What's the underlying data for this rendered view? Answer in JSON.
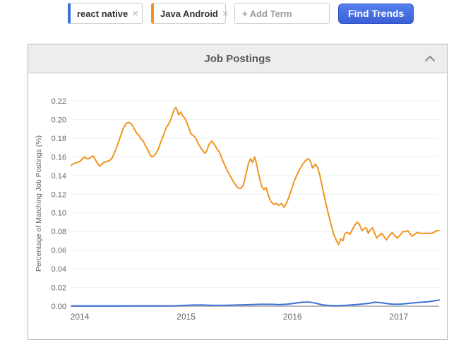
{
  "toolbar": {
    "terms": [
      {
        "label": "react native",
        "color": "#3b6fd9"
      },
      {
        "label": "Java Android",
        "color": "#f0941d"
      }
    ],
    "remove_icon": "×",
    "add_term_placeholder": "+ Add Term",
    "find_trends_label": "Find Trends"
  },
  "panel": {
    "title": "Job Postings"
  },
  "chart_data": {
    "type": "line",
    "title": "Job Postings",
    "xlabel": "",
    "ylabel": "Percentage of Matching Job Postings (%)",
    "ylim": [
      0,
      0.22
    ],
    "ytick_step": 0.02,
    "xlim": [
      2013.92,
      2017.38
    ],
    "xticks": [
      2014,
      2015,
      2016,
      2017
    ],
    "grid": true,
    "legend_position": "none",
    "grid_color": "#f0f0f0",
    "baseline_color": "#bbbbbb",
    "tick_color": "#666666",
    "series": [
      {
        "name": "react native",
        "color": "#3b6fd9",
        "points": [
          [
            2013.92,
            0.0002
          ],
          [
            2014.1,
            0.0002
          ],
          [
            2014.3,
            0.0002
          ],
          [
            2014.5,
            0.0003
          ],
          [
            2014.7,
            0.0003
          ],
          [
            2014.9,
            0.0004
          ],
          [
            2015.0,
            0.0008
          ],
          [
            2015.08,
            0.0012
          ],
          [
            2015.16,
            0.0012
          ],
          [
            2015.24,
            0.0008
          ],
          [
            2015.32,
            0.0008
          ],
          [
            2015.4,
            0.001
          ],
          [
            2015.5,
            0.0013
          ],
          [
            2015.6,
            0.0016
          ],
          [
            2015.7,
            0.002
          ],
          [
            2015.8,
            0.002
          ],
          [
            2015.88,
            0.0016
          ],
          [
            2015.96,
            0.0022
          ],
          [
            2016.04,
            0.0034
          ],
          [
            2016.1,
            0.0042
          ],
          [
            2016.16,
            0.0044
          ],
          [
            2016.22,
            0.0032
          ],
          [
            2016.28,
            0.0014
          ],
          [
            2016.35,
            0.0006
          ],
          [
            2016.42,
            0.0004
          ],
          [
            2016.5,
            0.0008
          ],
          [
            2016.58,
            0.0015
          ],
          [
            2016.65,
            0.0022
          ],
          [
            2016.72,
            0.003
          ],
          [
            2016.78,
            0.0042
          ],
          [
            2016.84,
            0.0036
          ],
          [
            2016.9,
            0.0026
          ],
          [
            2016.96,
            0.002
          ],
          [
            2017.02,
            0.0022
          ],
          [
            2017.08,
            0.0028
          ],
          [
            2017.15,
            0.0036
          ],
          [
            2017.22,
            0.0042
          ],
          [
            2017.28,
            0.0048
          ],
          [
            2017.33,
            0.0056
          ],
          [
            2017.38,
            0.0066
          ]
        ]
      },
      {
        "name": "Java Android",
        "color": "#f0941d",
        "points": [
          [
            2013.92,
            0.151
          ],
          [
            2013.947,
            0.153
          ],
          [
            2013.973,
            0.154
          ],
          [
            2014.0,
            0.155
          ],
          [
            2014.027,
            0.158
          ],
          [
            2014.046,
            0.16
          ],
          [
            2014.066,
            0.158
          ],
          [
            2014.086,
            0.158
          ],
          [
            2014.106,
            0.16
          ],
          [
            2014.126,
            0.161
          ],
          [
            2014.146,
            0.157
          ],
          [
            2014.166,
            0.153
          ],
          [
            2014.186,
            0.15
          ],
          [
            2014.206,
            0.152
          ],
          [
            2014.226,
            0.154
          ],
          [
            2014.252,
            0.155
          ],
          [
            2014.279,
            0.156
          ],
          [
            2014.305,
            0.159
          ],
          [
            2014.332,
            0.166
          ],
          [
            2014.358,
            0.174
          ],
          [
            2014.385,
            0.183
          ],
          [
            2014.411,
            0.191
          ],
          [
            2014.438,
            0.196
          ],
          [
            2014.458,
            0.197
          ],
          [
            2014.478,
            0.196
          ],
          [
            2014.498,
            0.193
          ],
          [
            2014.537,
            0.185
          ],
          [
            2014.557,
            0.183
          ],
          [
            2014.577,
            0.179
          ],
          [
            2014.597,
            0.177
          ],
          [
            2014.617,
            0.172
          ],
          [
            2014.637,
            0.168
          ],
          [
            2014.657,
            0.163
          ],
          [
            2014.677,
            0.16
          ],
          [
            2014.697,
            0.161
          ],
          [
            2014.717,
            0.164
          ],
          [
            2014.737,
            0.168
          ],
          [
            2014.756,
            0.174
          ],
          [
            2014.776,
            0.18
          ],
          [
            2014.796,
            0.186
          ],
          [
            2014.816,
            0.192
          ],
          [
            2014.836,
            0.195
          ],
          [
            2014.856,
            0.2
          ],
          [
            2014.876,
            0.207
          ],
          [
            2014.889,
            0.211
          ],
          [
            2014.902,
            0.213
          ],
          [
            2014.916,
            0.21
          ],
          [
            2014.929,
            0.205
          ],
          [
            2014.949,
            0.208
          ],
          [
            2014.969,
            0.204
          ],
          [
            2014.989,
            0.201
          ],
          [
            2015.009,
            0.196
          ],
          [
            2015.029,
            0.19
          ],
          [
            2015.049,
            0.184
          ],
          [
            2015.068,
            0.183
          ],
          [
            2015.095,
            0.179
          ],
          [
            2015.115,
            0.174
          ],
          [
            2015.148,
            0.168
          ],
          [
            2015.175,
            0.164
          ],
          [
            2015.194,
            0.166
          ],
          [
            2015.214,
            0.173
          ],
          [
            2015.241,
            0.177
          ],
          [
            2015.267,
            0.173
          ],
          [
            2015.294,
            0.168
          ],
          [
            2015.314,
            0.165
          ],
          [
            2015.334,
            0.159
          ],
          [
            2015.36,
            0.152
          ],
          [
            2015.393,
            0.144
          ],
          [
            2015.427,
            0.137
          ],
          [
            2015.453,
            0.132
          ],
          [
            2015.486,
            0.127
          ],
          [
            2015.513,
            0.126
          ],
          [
            2015.539,
            0.13
          ],
          [
            2015.566,
            0.143
          ],
          [
            2015.586,
            0.153
          ],
          [
            2015.606,
            0.158
          ],
          [
            2015.626,
            0.154
          ],
          [
            2015.646,
            0.16
          ],
          [
            2015.665,
            0.151
          ],
          [
            2015.685,
            0.14
          ],
          [
            2015.712,
            0.128
          ],
          [
            2015.732,
            0.125
          ],
          [
            2015.752,
            0.127
          ],
          [
            2015.772,
            0.119
          ],
          [
            2015.798,
            0.112
          ],
          [
            2015.825,
            0.109
          ],
          [
            2015.851,
            0.11
          ],
          [
            2015.871,
            0.108
          ],
          [
            2015.898,
            0.11
          ],
          [
            2015.918,
            0.106
          ],
          [
            2015.938,
            0.109
          ],
          [
            2015.964,
            0.116
          ],
          [
            2015.991,
            0.125
          ],
          [
            2016.017,
            0.134
          ],
          [
            2016.044,
            0.141
          ],
          [
            2016.07,
            0.147
          ],
          [
            2016.097,
            0.152
          ],
          [
            2016.123,
            0.156
          ],
          [
            2016.15,
            0.158
          ],
          [
            2016.17,
            0.155
          ],
          [
            2016.19,
            0.148
          ],
          [
            2016.216,
            0.152
          ],
          [
            2016.236,
            0.149
          ],
          [
            2016.256,
            0.141
          ],
          [
            2016.283,
            0.127
          ],
          [
            2016.309,
            0.113
          ],
          [
            2016.336,
            0.1
          ],
          [
            2016.362,
            0.088
          ],
          [
            2016.389,
            0.077
          ],
          [
            2016.415,
            0.07
          ],
          [
            2016.435,
            0.066
          ],
          [
            2016.455,
            0.072
          ],
          [
            2016.475,
            0.07
          ],
          [
            2016.495,
            0.078
          ],
          [
            2016.522,
            0.079
          ],
          [
            2016.541,
            0.077
          ],
          [
            2016.568,
            0.083
          ],
          [
            2016.588,
            0.087
          ],
          [
            2016.608,
            0.09
          ],
          [
            2016.628,
            0.088
          ],
          [
            2016.654,
            0.081
          ],
          [
            2016.674,
            0.083
          ],
          [
            2016.694,
            0.084
          ],
          [
            2016.714,
            0.078
          ],
          [
            2016.734,
            0.082
          ],
          [
            2016.754,
            0.084
          ],
          [
            2016.774,
            0.078
          ],
          [
            2016.793,
            0.073
          ],
          [
            2016.82,
            0.076
          ],
          [
            2016.84,
            0.078
          ],
          [
            2016.866,
            0.074
          ],
          [
            2016.886,
            0.071
          ],
          [
            2016.913,
            0.076
          ],
          [
            2016.939,
            0.079
          ],
          [
            2016.959,
            0.076
          ],
          [
            2016.986,
            0.073
          ],
          [
            2017.012,
            0.076
          ],
          [
            2017.039,
            0.08
          ],
          [
            2017.065,
            0.08
          ],
          [
            2017.085,
            0.081
          ],
          [
            2017.105,
            0.078
          ],
          [
            2017.125,
            0.075
          ],
          [
            2017.151,
            0.077
          ],
          [
            2017.171,
            0.079
          ],
          [
            2017.198,
            0.078
          ],
          [
            2017.224,
            0.078
          ],
          [
            2017.251,
            0.078
          ],
          [
            2017.277,
            0.078
          ],
          [
            2017.304,
            0.078
          ],
          [
            2017.33,
            0.079
          ],
          [
            2017.357,
            0.081
          ],
          [
            2017.377,
            0.081
          ]
        ]
      }
    ]
  }
}
